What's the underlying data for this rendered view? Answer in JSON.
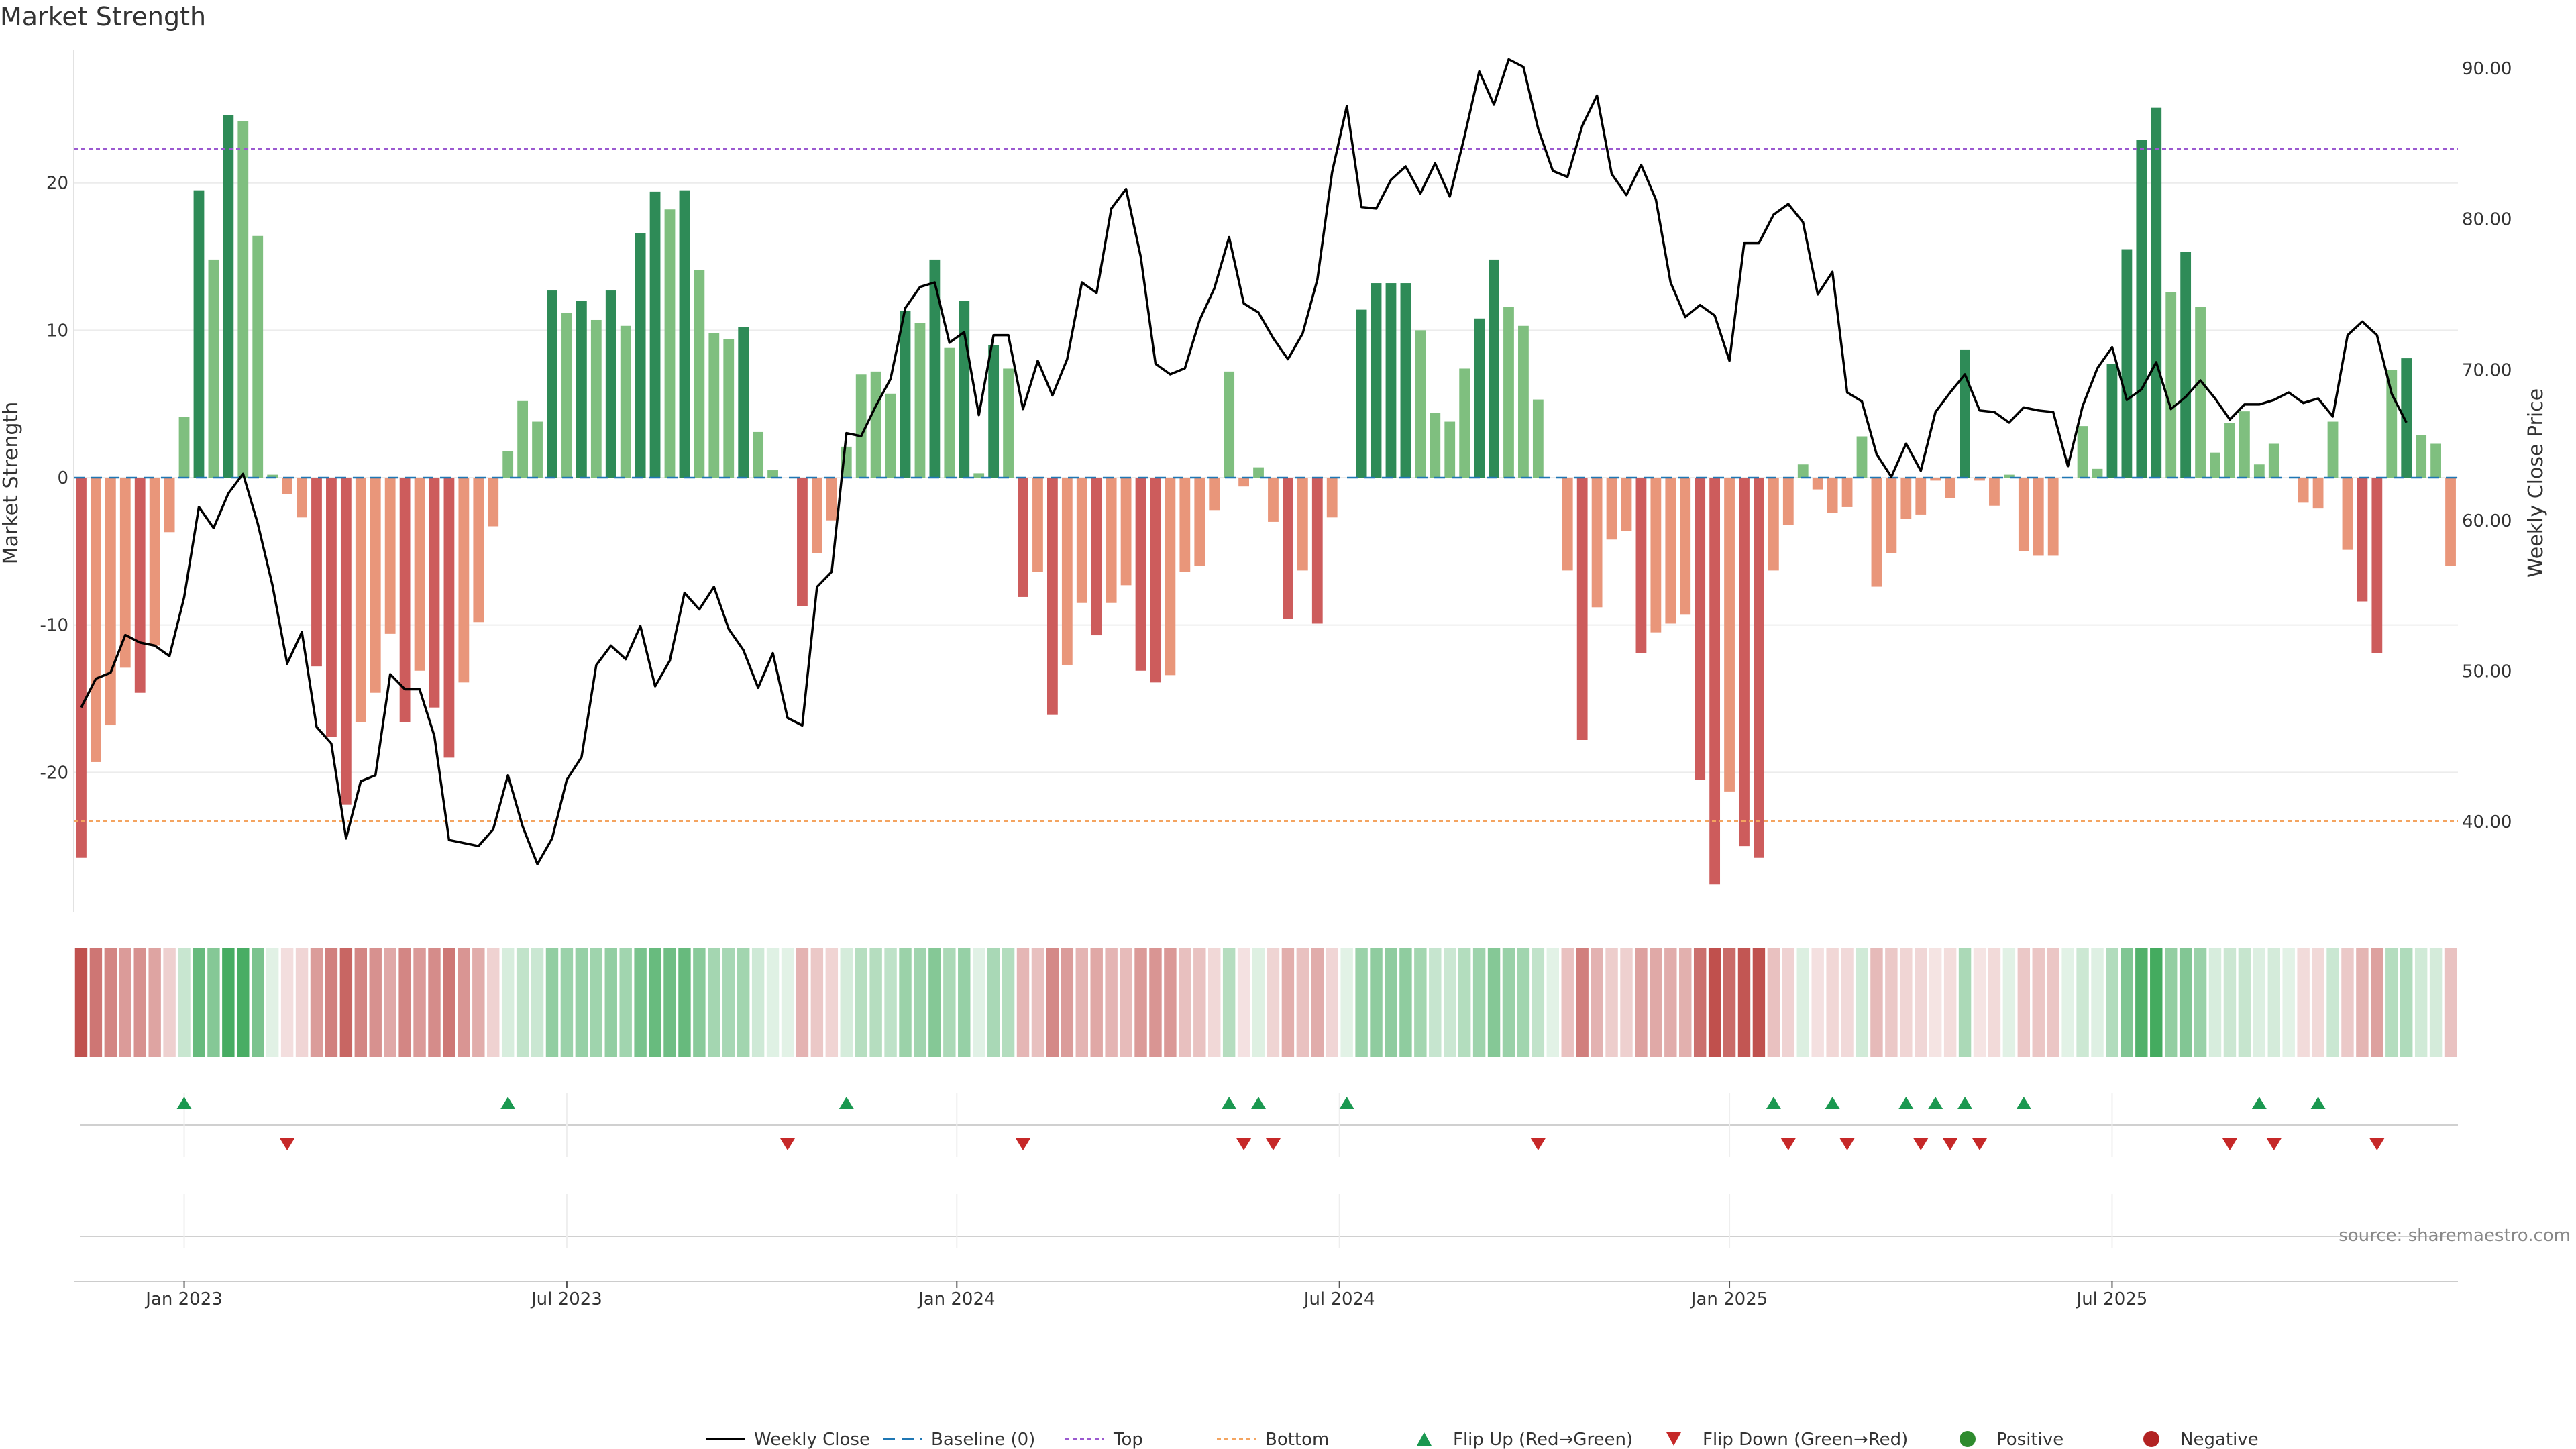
{
  "chart_data": {
    "type": "bar",
    "title": "Market Strength",
    "ylabel_left": "Market Strength",
    "ylabel_right": "Weekly Close Price",
    "source": "source: sharemaestro.com",
    "ylim_left": [
      -29.5,
      29
    ],
    "ylim_right": [
      34.0,
      91.2
    ],
    "top_threshold": 22.3,
    "bottom_threshold": -23.3,
    "yticks_left": [
      {
        "v": 20,
        "label": "20"
      },
      {
        "v": 10,
        "label": "10"
      },
      {
        "v": 0,
        "label": "0"
      },
      {
        "v": -10,
        "label": "-10"
      },
      {
        "v": -20,
        "label": "-20"
      }
    ],
    "yticks_right": [
      {
        "v": 90,
        "label": "90.00"
      },
      {
        "v": 80,
        "label": "80.00"
      },
      {
        "v": 70,
        "label": "70.00"
      },
      {
        "v": 60,
        "label": "60.00"
      },
      {
        "v": 50,
        "label": "50.00"
      },
      {
        "v": 40,
        "label": "40.00"
      }
    ],
    "x_ticks": [
      {
        "i": 7,
        "label": "Jan 2023"
      },
      {
        "i": 33,
        "label": "Jul 2023"
      },
      {
        "i": 59.5,
        "label": "Jan 2024"
      },
      {
        "i": 85.5,
        "label": "Jul 2024"
      },
      {
        "i": 112,
        "label": "Jan 2025"
      },
      {
        "i": 138,
        "label": "Jul 2025"
      }
    ],
    "strength": [
      -25.8,
      -19.3,
      -16.8,
      -12.9,
      -14.6,
      -11.4,
      -3.7,
      4.1,
      19.5,
      14.8,
      24.6,
      24.2,
      16.4,
      0.2,
      -1.1,
      -2.7,
      -12.8,
      -17.6,
      -22.2,
      -16.6,
      -14.6,
      -10.6,
      -16.6,
      -13.1,
      -15.6,
      -19.0,
      -13.9,
      -9.8,
      -3.3,
      1.8,
      5.2,
      3.8,
      12.7,
      11.2,
      12.0,
      10.7,
      12.7,
      10.3,
      16.6,
      19.4,
      18.2,
      19.5,
      14.1,
      9.8,
      9.4,
      10.2,
      3.1,
      0.5,
      0,
      -8.7,
      -5.1,
      -2.9,
      2.1,
      7.0,
      7.2,
      5.7,
      11.3,
      10.5,
      14.8,
      8.8,
      12.0,
      0.3,
      9.0,
      7.4,
      -8.1,
      -6.4,
      -16.1,
      -12.7,
      -8.5,
      -10.7,
      -8.5,
      -7.3,
      -13.1,
      -13.9,
      -13.4,
      -6.4,
      -6.0,
      -2.2,
      7.2,
      -0.6,
      0.7,
      -3.0,
      -9.6,
      -6.3,
      -9.9,
      -2.7,
      0,
      11.4,
      13.2,
      13.2,
      13.2,
      10.0,
      4.4,
      3.8,
      7.4,
      10.8,
      14.8,
      11.6,
      10.3,
      5.3,
      0,
      -6.3,
      -17.8,
      -8.8,
      -4.2,
      -3.6,
      -11.9,
      -10.5,
      -9.9,
      -9.3,
      -20.5,
      -27.6,
      -21.3,
      -25.0,
      -25.8,
      -6.3,
      -3.2,
      0.9,
      -0.8,
      -2.4,
      -2.0,
      2.8,
      -7.4,
      -5.1,
      -2.8,
      -2.5,
      -0.2,
      -1.4,
      8.7,
      -0.2,
      -1.9,
      0.2,
      -5.0,
      -5.3,
      -5.3,
      0,
      3.5,
      0.6,
      7.7,
      15.5,
      22.9,
      25.1,
      12.6,
      15.3,
      11.6,
      1.7,
      3.7,
      4.5,
      0.9,
      2.3,
      0,
      -1.7,
      -2.1,
      3.8,
      -4.9,
      -8.4,
      -11.9,
      7.3,
      8.1,
      2.9,
      2.3,
      -6.0
    ],
    "close": [
      47.6,
      49.5,
      49.9,
      52.4,
      51.9,
      51.7,
      51.0,
      54.9,
      60.9,
      59.5,
      61.8,
      63.1,
      59.8,
      55.7,
      50.5,
      52.6,
      46.3,
      45.2,
      38.9,
      42.7,
      43.1,
      49.8,
      48.8,
      48.8,
      45.7,
      38.8,
      38.6,
      38.4,
      39.5,
      43.1,
      39.7,
      37.2,
      38.9,
      42.8,
      44.3,
      50.4,
      51.7,
      50.8,
      53.0,
      49.0,
      50.7,
      55.2,
      54.1,
      55.6,
      52.8,
      51.4,
      48.9,
      51.2,
      46.9,
      46.4,
      55.6,
      56.6,
      65.8,
      65.6,
      67.6,
      69.4,
      74.1,
      75.5,
      75.8,
      71.8,
      72.5,
      67.0,
      72.3,
      72.3,
      67.4,
      70.6,
      68.3,
      70.7,
      75.8,
      75.1,
      80.7,
      82.0,
      77.5,
      70.4,
      69.7,
      70.1,
      73.3,
      75.4,
      78.8,
      74.4,
      73.8,
      72.1,
      70.7,
      72.4,
      76.0,
      83.1,
      87.5,
      80.8,
      80.7,
      82.6,
      83.5,
      81.7,
      83.7,
      81.5,
      85.5,
      89.8,
      87.6,
      90.6,
      90.1,
      86.0,
      83.2,
      82.8,
      86.2,
      88.2,
      83.0,
      81.6,
      83.6,
      81.3,
      75.8,
      73.5,
      74.3,
      73.6,
      70.6,
      78.4,
      78.4,
      80.3,
      81.0,
      79.8,
      75.0,
      76.5,
      68.5,
      67.9,
      64.4,
      62.9,
      65.1,
      63.3,
      67.2,
      68.5,
      69.7,
      67.3,
      67.2,
      66.5,
      67.5,
      67.3,
      67.2,
      63.6,
      67.6,
      70.1,
      71.5,
      68.0,
      68.7,
      70.5,
      67.4,
      68.2,
      69.3,
      68.1,
      66.7,
      67.7,
      67.7,
      68.0,
      68.5,
      67.8,
      68.1,
      66.9,
      72.3,
      73.2,
      72.3,
      68.4,
      66.5
    ],
    "flip_up_indices": [
      7,
      29,
      52,
      78,
      80,
      86,
      115,
      119,
      124,
      126,
      128,
      132,
      148,
      152
    ],
    "flip_down_indices": [
      14,
      48,
      64,
      79,
      81,
      99,
      116,
      120,
      125,
      127,
      129,
      146,
      149,
      156
    ],
    "legend": [
      {
        "key": "line",
        "label": "Weekly Close"
      },
      {
        "key": "baseline",
        "label": "Baseline (0)"
      },
      {
        "key": "top",
        "label": "Top"
      },
      {
        "key": "bottom",
        "label": "Bottom"
      },
      {
        "key": "up",
        "label": "Flip Up (Red→Green)"
      },
      {
        "key": "down",
        "label": "Flip Down (Green→Red)"
      },
      {
        "key": "pos",
        "label": "Positive"
      },
      {
        "key": "neg",
        "label": "Negative"
      }
    ]
  },
  "colors": {
    "pos_strong": "#2e8b57",
    "pos_light": "#7fbf7f",
    "neg_strong": "#cd5c5c",
    "neg_light": "#e9967a",
    "line": "#000000",
    "top": "#9b59d0",
    "bottom": "#f4a460",
    "baseline": "#1f77b4",
    "flip_up": "#1a9850",
    "flip_down": "#c62828",
    "positive_dot": "#2e8b2e",
    "negative_dot": "#b22222"
  }
}
